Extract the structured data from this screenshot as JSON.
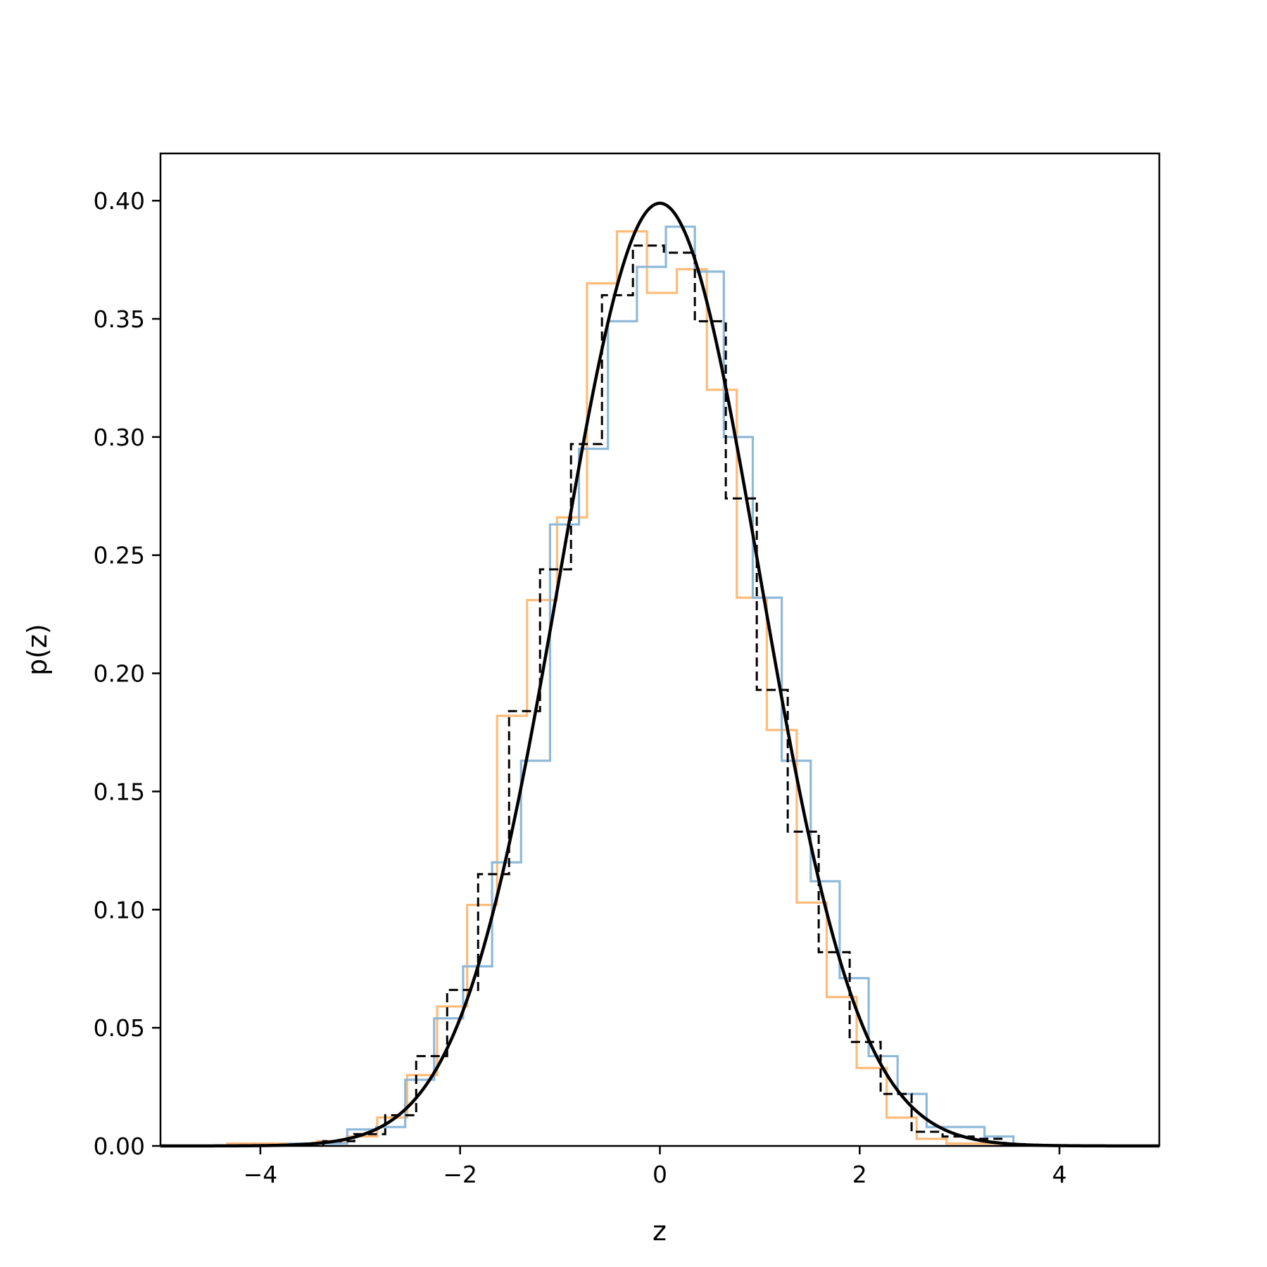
{
  "chart_data": {
    "type": "histogram",
    "title": "",
    "xlabel": "z",
    "ylabel": "p(z)",
    "xlim": [
      -5,
      5
    ],
    "ylim": [
      0,
      0.42
    ],
    "grid": false,
    "legend": "none",
    "x_ticks": [
      -4,
      -2,
      0,
      2,
      4
    ],
    "x_tick_labels": [
      "−4",
      "−2",
      "0",
      "2",
      "4"
    ],
    "y_ticks": [
      0,
      0.05,
      0.1,
      0.15,
      0.2,
      0.25,
      0.3,
      0.35,
      0.4
    ],
    "y_tick_labels": [
      "0.00",
      "0.05",
      "0.10",
      "0.15",
      "0.20",
      "0.25",
      "0.30",
      "0.35",
      "0.40"
    ],
    "series": [
      {
        "kind": "step",
        "color": "#ffbb78",
        "linestyle": "solid",
        "edges": [
          -4.33,
          -4.03,
          -3.73,
          -3.43,
          -3.13,
          -2.83,
          -2.53,
          -2.23,
          -1.93,
          -1.63,
          -1.33,
          -1.03,
          -0.73,
          -0.43,
          -0.13,
          0.17,
          0.47,
          0.77,
          1.07,
          1.37,
          1.67,
          1.97,
          2.27,
          2.57,
          2.87,
          3.17,
          3.47
        ],
        "values": [
          0.001,
          0.001,
          0.001,
          0.002,
          0.004,
          0.012,
          0.03,
          0.059,
          0.102,
          0.182,
          0.231,
          0.266,
          0.365,
          0.387,
          0.361,
          0.371,
          0.32,
          0.232,
          0.176,
          0.103,
          0.063,
          0.033,
          0.012,
          0.003,
          0.001,
          0.001
        ]
      },
      {
        "kind": "step",
        "color": "#8fb9d9",
        "linestyle": "solid",
        "edges": [
          -3.71,
          -3.42,
          -3.13,
          -2.84,
          -2.55,
          -2.26,
          -1.97,
          -1.68,
          -1.39,
          -1.1,
          -0.81,
          -0.52,
          -0.23,
          0.06,
          0.35,
          0.64,
          0.93,
          1.22,
          1.51,
          1.8,
          2.09,
          2.38,
          2.67,
          3.25,
          3.54
        ],
        "values": [
          0.001,
          0.001,
          0.007,
          0.008,
          0.028,
          0.054,
          0.076,
          0.12,
          0.163,
          0.263,
          0.295,
          0.349,
          0.372,
          0.389,
          0.37,
          0.3,
          0.232,
          0.163,
          0.112,
          0.071,
          0.038,
          0.022,
          0.008,
          0.004
        ]
      },
      {
        "kind": "step",
        "color": "#000000",
        "linestyle": "dashed",
        "edges": [
          -3.37,
          -3.06,
          -2.75,
          -2.44,
          -2.13,
          -1.82,
          -1.51,
          -1.2,
          -0.89,
          -0.58,
          -0.27,
          0.04,
          0.35,
          0.66,
          0.97,
          1.28,
          1.59,
          1.9,
          2.21,
          2.52,
          2.83,
          3.14,
          3.45
        ],
        "values": [
          0.002,
          0.005,
          0.013,
          0.038,
          0.066,
          0.115,
          0.184,
          0.244,
          0.297,
          0.36,
          0.381,
          0.378,
          0.349,
          0.274,
          0.193,
          0.133,
          0.082,
          0.044,
          0.022,
          0.006,
          0.004,
          0.003
        ]
      },
      {
        "kind": "line",
        "color": "#000000",
        "linestyle": "solid",
        "function": "normal_pdf",
        "mu": 0,
        "sigma": 1,
        "x_range": [
          -5,
          5
        ]
      }
    ]
  }
}
